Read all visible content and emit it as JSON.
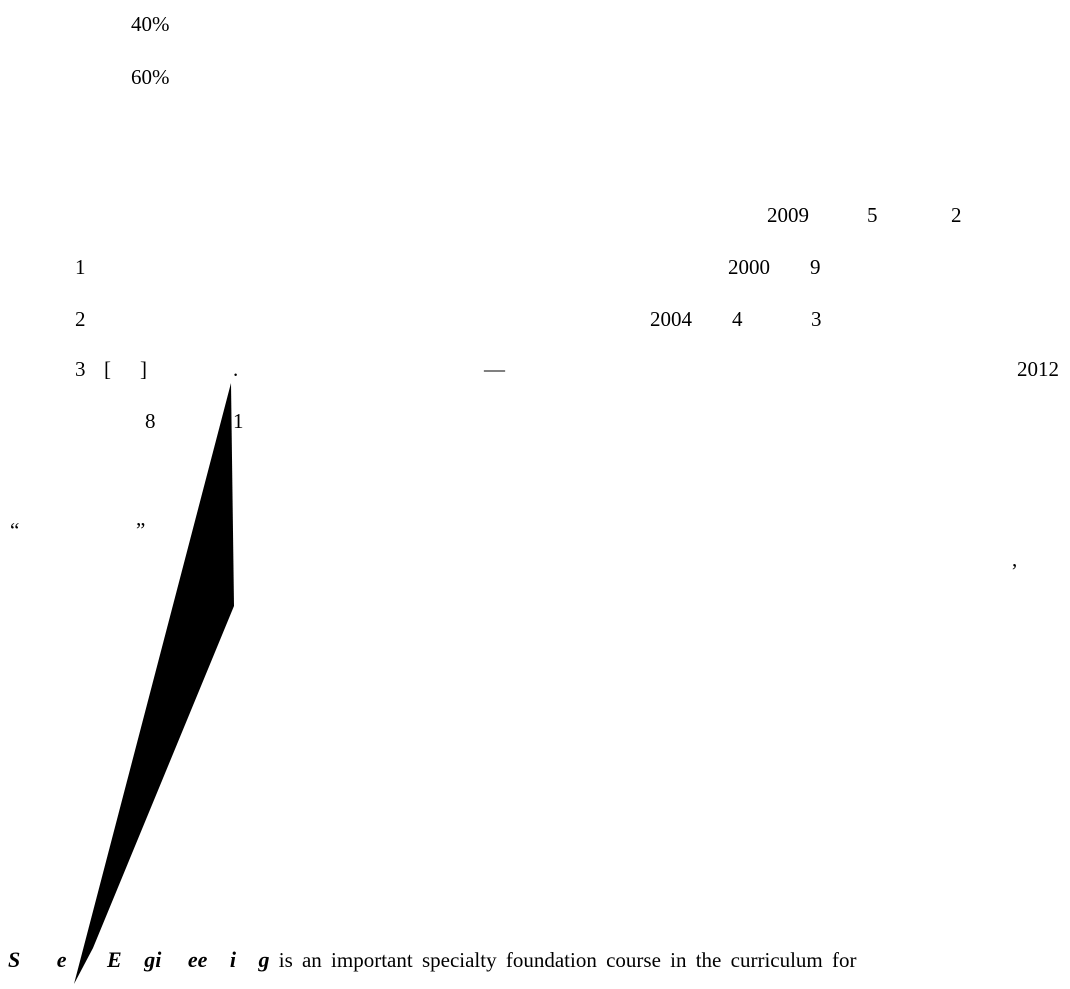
{
  "percentages": [
    "40%",
    "60%"
  ],
  "header_row": {
    "year": "2009",
    "v1": "5",
    "v2": "2"
  },
  "references": [
    {
      "index": "1",
      "year": "2000",
      "v1": "9"
    },
    {
      "index": "2",
      "year": "2004",
      "v1": "4",
      "v2": "3"
    },
    {
      "index": "3",
      "bracket_open": "[",
      "bracket_close": "]",
      "dot": ".",
      "dash": "—",
      "year": "2012",
      "cont_a": "8",
      "cont_b": "1"
    }
  ],
  "quote_line": {
    "open": "“",
    "close": "”",
    "comma": ","
  },
  "abstract": {
    "bold_title_parts": [
      "S",
      "e",
      "E",
      "gi",
      "ee",
      "i",
      "g"
    ],
    "body": "is an important specialty foundation course in the curriculum for"
  }
}
